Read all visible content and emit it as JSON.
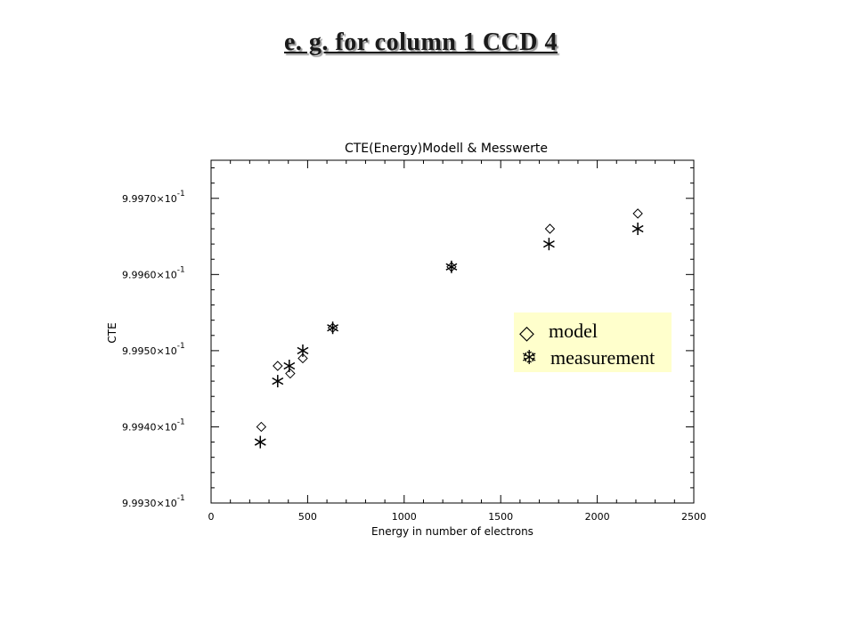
{
  "slide": {
    "title": "e. g. for column 1 CCD 4"
  },
  "chart_data": {
    "type": "scatter",
    "title": "CTE(Energy)Modell & Messwerte",
    "xlabel": "Energy in number of electrons",
    "ylabel": "CTE",
    "xlim": [
      0,
      2500
    ],
    "ylim": [
      0.9993,
      0.99975
    ],
    "x_ticks": [
      0,
      500,
      1000,
      1500,
      2000,
      2500
    ],
    "x_tick_labels": [
      "0",
      "500",
      "1000",
      "1500",
      "2000",
      "2500"
    ],
    "y_ticks": [
      0.9993,
      0.9994,
      0.9995,
      0.9996,
      0.9997
    ],
    "y_tick_labels": [
      {
        "mantissa": "9.9930",
        "exp": "-1"
      },
      {
        "mantissa": "9.9940",
        "exp": "-1"
      },
      {
        "mantissa": "9.9950",
        "exp": "-1"
      },
      {
        "mantissa": "9.9960",
        "exp": "-1"
      },
      {
        "mantissa": "9.9970",
        "exp": "-1"
      }
    ],
    "series": [
      {
        "name": "model",
        "marker": "diamond",
        "x": [
          260,
          345,
          410,
          475,
          630,
          1245,
          1755,
          2210
        ],
        "y": [
          0.9994,
          0.99948,
          0.99947,
          0.99949,
          0.99953,
          0.99961,
          0.99966,
          0.99968
        ]
      },
      {
        "name": "measurement",
        "marker": "asterisk",
        "x": [
          255,
          345,
          405,
          475,
          630,
          1245,
          1750,
          2210
        ],
        "y": [
          0.99938,
          0.99946,
          0.99948,
          0.9995,
          0.99953,
          0.99961,
          0.99964,
          0.99966
        ]
      }
    ],
    "legend": {
      "position": "right",
      "background": "#ffffcc",
      "entries": [
        {
          "symbol": "◇",
          "label": "model"
        },
        {
          "symbol": "❄",
          "label": "measurement"
        }
      ]
    }
  }
}
